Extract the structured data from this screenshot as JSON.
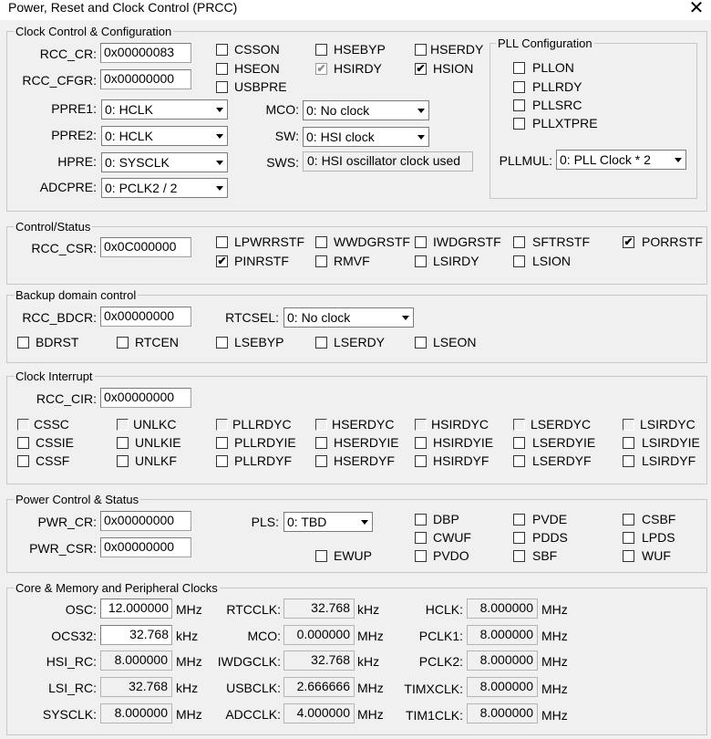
{
  "window": {
    "title": "Power, Reset and Clock Control (PRCC)",
    "close_glyph": "✕"
  },
  "check_glyph": "✔",
  "clock_config": {
    "legend": "Clock Control & Configuration",
    "rcc_cr_label": "RCC_CR:",
    "rcc_cr": "0x00000083",
    "rcc_cfgr_label": "RCC_CFGR:",
    "rcc_cfgr": "0x00000000",
    "ppre1_label": "PPRE1:",
    "ppre1": "0: HCLK",
    "ppre2_label": "PPRE2:",
    "ppre2": "0: HCLK",
    "hpre_label": "HPRE:",
    "hpre": "0: SYSCLK",
    "adcpre_label": "ADCPRE:",
    "adcpre": "0: PCLK2 / 2",
    "mco_label": "MCO:",
    "mco": "0: No clock",
    "sw_label": "SW:",
    "sw": "0: HSI clock",
    "sws_label": "SWS:",
    "sws": "0: HSI oscillator clock used",
    "checkboxes": [
      {
        "label": "CSSON",
        "checked": false,
        "disabled": false
      },
      {
        "label": "HSEBYP",
        "checked": false,
        "disabled": false
      },
      {
        "label": "HSERDY",
        "checked": false,
        "disabled": false
      },
      {
        "label": "HSEON",
        "checked": false,
        "disabled": false
      },
      {
        "label": "HSIRDY",
        "checked": true,
        "disabled": true
      },
      {
        "label": "HSION",
        "checked": true,
        "disabled": false
      },
      {
        "label": "USBPRE",
        "checked": false,
        "disabled": false
      }
    ]
  },
  "pll": {
    "legend": "PLL Configuration",
    "checkboxes": [
      {
        "label": "PLLON",
        "checked": false
      },
      {
        "label": "PLLRDY",
        "checked": false
      },
      {
        "label": "PLLSRC",
        "checked": false
      },
      {
        "label": "PLLXTPRE",
        "checked": false
      }
    ],
    "pllmul_label": "PLLMUL:",
    "pllmul": "0: PLL Clock * 2"
  },
  "control_status": {
    "legend": "Control/Status",
    "rcc_csr_label": "RCC_CSR:",
    "rcc_csr": "0x0C000000",
    "checkboxes": [
      {
        "label": "LPWRRSTF",
        "checked": false
      },
      {
        "label": "WWDGRSTF",
        "checked": false
      },
      {
        "label": "IWDGRSTF",
        "checked": false
      },
      {
        "label": "SFTRSTF",
        "checked": false
      },
      {
        "label": "PORRSTF",
        "checked": true
      },
      {
        "label": "PINRSTF",
        "checked": true
      },
      {
        "label": "RMVF",
        "checked": false
      },
      {
        "label": "LSIRDY",
        "checked": false
      },
      {
        "label": "LSION",
        "checked": false
      }
    ]
  },
  "backup": {
    "legend": "Backup domain control",
    "rcc_bdcr_label": "RCC_BDCR:",
    "rcc_bdcr": "0x00000000",
    "rtcsel_label": "RTCSEL:",
    "rtcsel": "0: No clock",
    "checkboxes": [
      {
        "label": "BDRST",
        "checked": false
      },
      {
        "label": "RTCEN",
        "checked": false
      },
      {
        "label": "LSEBYP",
        "checked": false
      },
      {
        "label": "LSERDY",
        "checked": false
      },
      {
        "label": "LSEON",
        "checked": false
      }
    ]
  },
  "interrupt": {
    "legend": "Clock Interrupt",
    "rcc_cir_label": "RCC_CIR:",
    "rcc_cir": "0x00000000",
    "row1": [
      "CSSC",
      "UNLKC",
      "PLLRDYC",
      "HSERDYC",
      "HSIRDYC",
      "LSERDYC",
      "LSIRDYC"
    ],
    "row2": [
      "CSSIE",
      "UNLKIE",
      "PLLRDYIE",
      "HSERDYIE",
      "HSIRDYIE",
      "LSERDYIE",
      "LSIRDYIE"
    ],
    "row3": [
      "CSSF",
      "UNLKF",
      "PLLRDYF",
      "HSERDYF",
      "HSIRDYF",
      "LSERDYF",
      "LSIRDYF"
    ]
  },
  "power": {
    "legend": "Power Control & Status",
    "pwr_cr_label": "PWR_CR:",
    "pwr_cr": "0x00000000",
    "pwr_csr_label": "PWR_CSR:",
    "pwr_csr": "0x00000000",
    "pls_label": "PLS:",
    "pls": "0: TBD",
    "checkboxes": [
      {
        "label": "DBP",
        "checked": false
      },
      {
        "label": "PVDE",
        "checked": false
      },
      {
        "label": "CSBF",
        "checked": false
      },
      {
        "label": "CWUF",
        "checked": false
      },
      {
        "label": "PDDS",
        "checked": false
      },
      {
        "label": "LPDS",
        "checked": false
      },
      {
        "label": "EWUP",
        "checked": false
      },
      {
        "label": "PVDO",
        "checked": false
      },
      {
        "label": "SBF",
        "checked": false
      },
      {
        "label": "WUF",
        "checked": false
      }
    ]
  },
  "clocks": {
    "legend": "Core & Memory and Peripheral Clocks",
    "col1": [
      {
        "label": "OSC:",
        "value": "12.000000",
        "unit": "MHz",
        "editable": true
      },
      {
        "label": "OCS32:",
        "value": "32.768",
        "unit": "kHz",
        "editable": true
      },
      {
        "label": "HSI_RC:",
        "value": "8.000000",
        "unit": "MHz",
        "editable": false
      },
      {
        "label": "LSI_RC:",
        "value": "32.768",
        "unit": "kHz",
        "editable": false
      },
      {
        "label": "SYSCLK:",
        "value": "8.000000",
        "unit": "MHz",
        "editable": false
      }
    ],
    "col2": [
      {
        "label": "RTCCLK:",
        "value": "32.768",
        "unit": "kHz"
      },
      {
        "label": "MCO:",
        "value": "0.000000",
        "unit": "MHz"
      },
      {
        "label": "IWDGCLK:",
        "value": "32.768",
        "unit": "kHz"
      },
      {
        "label": "USBCLK:",
        "value": "2.666666",
        "unit": "MHz"
      },
      {
        "label": "ADCCLK:",
        "value": "4.000000",
        "unit": "MHz"
      }
    ],
    "col3": [
      {
        "label": "HCLK:",
        "value": "8.000000",
        "unit": "MHz"
      },
      {
        "label": "PCLK1:",
        "value": "8.000000",
        "unit": "MHz"
      },
      {
        "label": "PCLK2:",
        "value": "8.000000",
        "unit": "MHz"
      },
      {
        "label": "TIMXCLK:",
        "value": "8.000000",
        "unit": "MHz"
      },
      {
        "label": "TIM1CLK:",
        "value": "8.000000",
        "unit": "MHz"
      }
    ]
  }
}
